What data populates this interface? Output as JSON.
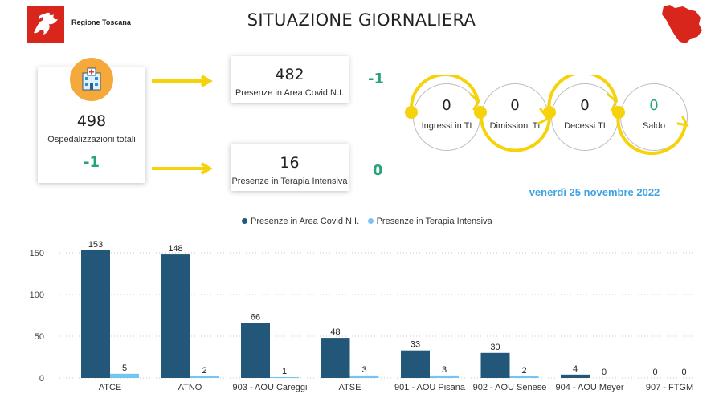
{
  "header": {
    "brand": "Regione Toscana",
    "title": "SITUAZIONE GIORNALIERA"
  },
  "colors": {
    "series_primary": "#23577a",
    "series_secondary": "#74c5f2",
    "accent_yellow": "#f6d20a",
    "delta_green": "#27a37a",
    "date_blue": "#3ea3e0",
    "logo_red": "#d8261d"
  },
  "kpis": {
    "total": {
      "value": "498",
      "label": "Ospedalizzazioni totali",
      "delta": "-1"
    },
    "covid_area": {
      "value": "482",
      "label": "Presenze in Area Covid N.I.",
      "delta": "-1"
    },
    "intensive": {
      "value": "16",
      "label": "Presenze in Terapia Intensiva",
      "delta": "0"
    }
  },
  "flow": [
    {
      "value": "0",
      "label": "Ingressi in TI"
    },
    {
      "value": "0",
      "label": "Dimissioni TI"
    },
    {
      "value": "0",
      "label": "Decessi TI"
    },
    {
      "value": "0",
      "label": "Saldo"
    }
  ],
  "date": "venerdì 25 novembre 2022",
  "icons": {
    "logo": "pegasus-logo",
    "hospital": "hospital-icon",
    "map": "tuscany-map"
  },
  "chart_data": {
    "type": "bar",
    "categories": [
      "ATCE",
      "ATNO",
      "903 - AOU Careggi",
      "ATSE",
      "901 - AOU Pisana",
      "902 - AOU Senese",
      "904 - AOU Meyer",
      "907 - FTGM"
    ],
    "series": [
      {
        "name": "Presenze in Area Covid N.I.",
        "values": [
          153,
          148,
          66,
          48,
          33,
          30,
          4,
          0
        ]
      },
      {
        "name": "Presenze in Terapia Intensiva",
        "values": [
          5,
          2,
          1,
          3,
          3,
          2,
          0,
          0
        ]
      }
    ],
    "yticks": [
      "0",
      "50",
      "100",
      "150"
    ],
    "ylim": [
      0,
      160
    ],
    "legend_position": "top",
    "grid": true
  }
}
